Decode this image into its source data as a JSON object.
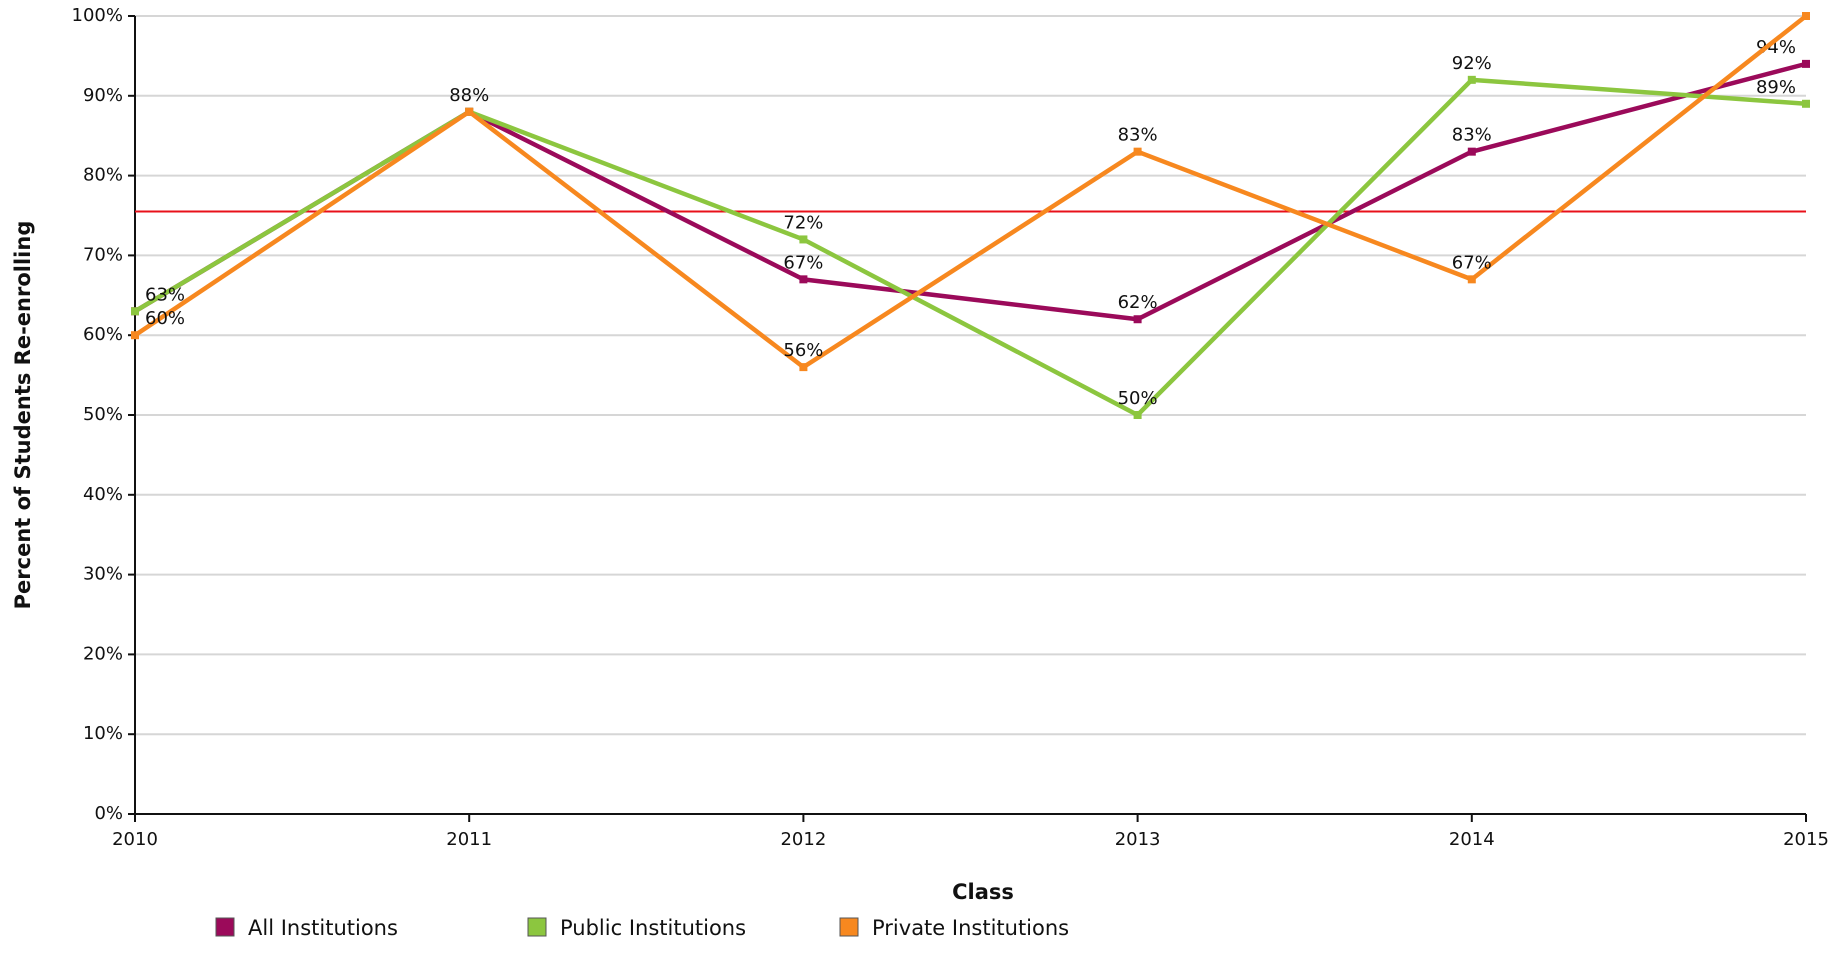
{
  "chart_data": {
    "type": "line",
    "x_label": "Class",
    "y_label": "Percent of Students Re-enrolling",
    "x": [
      2010,
      2011,
      2012,
      2013,
      2014,
      2015
    ],
    "xlim": [
      2010,
      2015
    ],
    "xticks": [
      2010,
      2011,
      2012,
      2013,
      2014,
      2015
    ],
    "ylim": [
      0,
      100
    ],
    "yticks": [
      {
        "value": 0,
        "label": "0%"
      },
      {
        "value": 10,
        "label": "10%"
      },
      {
        "value": 20,
        "label": "20%"
      },
      {
        "value": 30,
        "label": "30%"
      },
      {
        "value": 40,
        "label": "40%"
      },
      {
        "value": 50,
        "label": "50%"
      },
      {
        "value": 60,
        "label": "60%"
      },
      {
        "value": 70,
        "label": "70%"
      },
      {
        "value": 80,
        "label": "80%"
      },
      {
        "value": 90,
        "label": "90%"
      },
      {
        "value": 100,
        "label": "100%"
      }
    ],
    "grid": true,
    "reference_line": {
      "value": 75.5,
      "color": "#e8101a"
    },
    "series": [
      {
        "name": "All Institutions",
        "color": "#9b0a5a",
        "values": [
          63,
          88,
          67,
          62,
          83,
          94
        ],
        "value_labels": [
          null,
          null,
          "67%",
          "62%",
          "83%",
          "94%"
        ]
      },
      {
        "name": "Public Institutions",
        "color": "#8cc63f",
        "values": [
          63,
          88,
          72,
          50,
          92,
          89
        ],
        "value_labels": [
          "63%",
          "88%",
          "72%",
          "50%",
          "92%",
          "89%"
        ]
      },
      {
        "name": "Private Institutions",
        "color": "#f7881f",
        "values": [
          60,
          88,
          56,
          83,
          67,
          100
        ],
        "value_labels": [
          "60%",
          null,
          "56%",
          "83%",
          "67%",
          null
        ]
      }
    ]
  }
}
